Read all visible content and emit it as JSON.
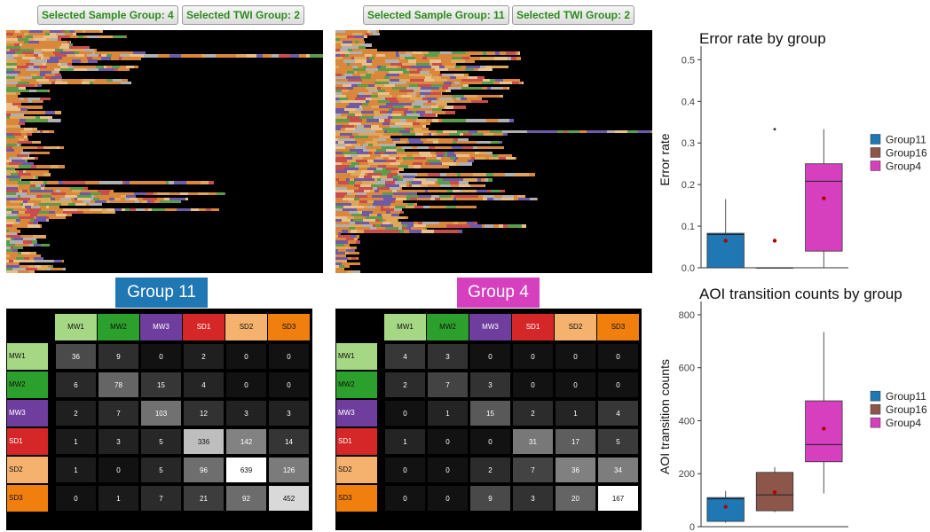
{
  "badges": {
    "left_sample": "Selected Sample Group: 4",
    "left_twi": "Selected TWI Group: 2",
    "right_sample": "Selected Sample Group: 11",
    "right_twi": "Selected TWI Group: 2"
  },
  "group_labels": {
    "left": "Group 11",
    "right": "Group 4",
    "left_color": "#1f77b4",
    "right_color": "#d63fbd"
  },
  "aoi_colors": {
    "MW1": "#a6d785",
    "MW2": "#2ca02c",
    "MW3": "#6f3d9e",
    "SD1": "#d62728",
    "SD2": "#f4b26e",
    "SD3": "#f07f0e"
  },
  "chart_data": [
    {
      "type": "table",
      "labels": [
        "MW1",
        "MW2",
        "MW3",
        "SD1",
        "SD2",
        "SD3"
      ],
      "rows": [
        [
          36,
          9,
          0,
          2,
          0,
          0
        ],
        [
          6,
          78,
          15,
          4,
          0,
          0
        ],
        [
          2,
          7,
          103,
          12,
          3,
          3
        ],
        [
          1,
          3,
          5,
          336,
          142,
          14
        ],
        [
          1,
          0,
          5,
          96,
          639,
          126
        ],
        [
          0,
          1,
          7,
          21,
          92,
          452
        ]
      ]
    },
    {
      "type": "table",
      "labels": [
        "MW1",
        "MW2",
        "MW3",
        "SD1",
        "SD2",
        "SD3"
      ],
      "rows": [
        [
          4,
          3,
          0,
          0,
          0,
          0
        ],
        [
          2,
          7,
          3,
          0,
          0,
          0
        ],
        [
          0,
          1,
          15,
          2,
          1,
          4
        ],
        [
          1,
          0,
          0,
          31,
          17,
          5
        ],
        [
          0,
          0,
          2,
          7,
          36,
          34
        ],
        [
          0,
          0,
          9,
          3,
          20,
          167
        ]
      ]
    },
    {
      "type": "box",
      "title": "Error rate by group",
      "ylabel": "Error rate",
      "ylim": [
        0,
        0.52
      ],
      "yticks": [
        "0.0",
        "0.1",
        "0.2",
        "0.3",
        "0.4",
        "0.5"
      ],
      "legend": [
        "Group11",
        "Group16",
        "Group4"
      ],
      "legend_placement": "right",
      "series": [
        {
          "name": "Group11",
          "color": "#1f77b4",
          "min": 0,
          "q1": 0,
          "median": 0.08,
          "q3": 0.083,
          "max": 0.165,
          "mean": 0.065,
          "outliers": []
        },
        {
          "name": "Group16",
          "color": "#8c564b",
          "min": 0,
          "q1": 0,
          "median": 0,
          "q3": 0,
          "max": 0,
          "mean": 0.065,
          "outliers": [
            0.333
          ]
        },
        {
          "name": "Group4",
          "color": "#d63fbd",
          "min": 0,
          "q1": 0.04,
          "median": 0.208,
          "q3": 0.25,
          "max": 0.333,
          "mean": 0.167,
          "outliers": []
        }
      ]
    },
    {
      "type": "box",
      "title": "AOI transition counts by group",
      "ylabel": "AOI transition counts",
      "ylim": [
        0,
        830
      ],
      "yticks": [
        "0",
        "200",
        "400",
        "600",
        "800"
      ],
      "legend": [
        "Group11",
        "Group16",
        "Group4"
      ],
      "legend_placement": "right",
      "series": [
        {
          "name": "Group11",
          "color": "#1f77b4",
          "min": 15,
          "q1": 20,
          "median": 105,
          "q3": 110,
          "max": 135,
          "mean": 75,
          "outliers": []
        },
        {
          "name": "Group16",
          "color": "#8c564b",
          "min": 55,
          "q1": 60,
          "median": 120,
          "q3": 205,
          "max": 225,
          "mean": 130,
          "outliers": []
        },
        {
          "name": "Group4",
          "color": "#d63fbd",
          "min": 125,
          "q1": 245,
          "median": 310,
          "q3": 475,
          "max": 735,
          "mean": 370,
          "outliers": []
        }
      ]
    }
  ]
}
